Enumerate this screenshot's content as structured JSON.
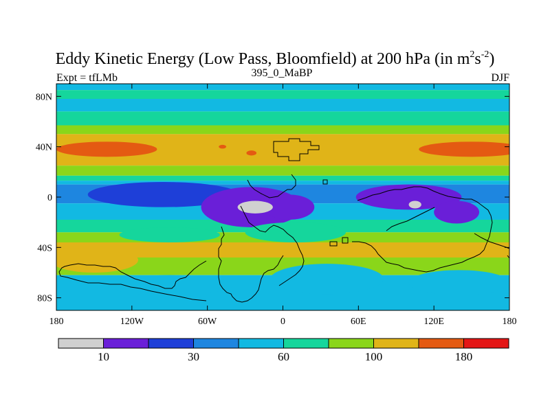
{
  "chart_data": {
    "type": "heatmap",
    "title": "Eddy Kinetic Energy (Low Pass, Bloomfield) at 200 hPa (in m",
    "title_unit_exp1": "2",
    "title_unit_mid": "s",
    "title_unit_exp2": "-2",
    "title_close": ")",
    "subtitle_left": "Expt = tfLMb",
    "subtitle_center": "395_0_MaBP",
    "subtitle_right": "DJF",
    "x_ticks": [
      {
        "value": -180,
        "label": "180"
      },
      {
        "value": -120,
        "label": "120W"
      },
      {
        "value": -60,
        "label": "60W"
      },
      {
        "value": 0,
        "label": "0"
      },
      {
        "value": 60,
        "label": "60E"
      },
      {
        "value": 120,
        "label": "120E"
      },
      {
        "value": 180,
        "label": "180"
      }
    ],
    "y_ticks": [
      {
        "value": 80,
        "label": "80N"
      },
      {
        "value": 40,
        "label": "40N"
      },
      {
        "value": 0,
        "label": "0"
      },
      {
        "value": -40,
        "label": "40S"
      },
      {
        "value": -80,
        "label": "80S"
      }
    ],
    "xlim": [
      -180,
      180
    ],
    "ylim": [
      -90,
      90
    ],
    "colorbar": {
      "colors": [
        "#d0d0d0",
        "#6a1fd8",
        "#1e3fd8",
        "#1e86e0",
        "#12b9e2",
        "#15d69c",
        "#8ad61a",
        "#e0b418",
        "#e45a12",
        "#e41616"
      ],
      "labels": [
        {
          "boundary": 1,
          "text": "10"
        },
        {
          "boundary": 3,
          "text": "30"
        },
        {
          "boundary": 5,
          "text": "60"
        },
        {
          "boundary": 7,
          "text": "100"
        },
        {
          "boundary": 9,
          "text": "180"
        }
      ]
    },
    "latitude_bands": [
      {
        "lat_top": 90,
        "lat_bottom": 85,
        "level": 4
      },
      {
        "lat_top": 85,
        "lat_bottom": 78,
        "level": 5
      },
      {
        "lat_top": 78,
        "lat_bottom": 68,
        "level": 4
      },
      {
        "lat_top": 68,
        "lat_bottom": 57,
        "level": 5
      },
      {
        "lat_top": 57,
        "lat_bottom": 50,
        "level": 6
      },
      {
        "lat_top": 50,
        "lat_bottom": 25,
        "level": 7
      },
      {
        "lat_top": 25,
        "lat_bottom": 17,
        "level": 6
      },
      {
        "lat_top": 17,
        "lat_bottom": 13,
        "level": 5
      },
      {
        "lat_top": 13,
        "lat_bottom": 10,
        "level": 4
      },
      {
        "lat_top": 10,
        "lat_bottom": -5,
        "level": 3
      },
      {
        "lat_top": -5,
        "lat_bottom": -18,
        "level": 4
      },
      {
        "lat_top": -18,
        "lat_bottom": -28,
        "level": 5
      },
      {
        "lat_top": -28,
        "lat_bottom": -36,
        "level": 6
      },
      {
        "lat_top": -36,
        "lat_bottom": -48,
        "level": 7
      },
      {
        "lat_top": -48,
        "lat_bottom": -62,
        "level": 6
      },
      {
        "lat_top": -62,
        "lat_bottom": -90,
        "level": 4
      }
    ],
    "regions": [
      {
        "shape": "ellipse",
        "lon": 150,
        "lat": 38,
        "rlon": 42,
        "rlat": 6,
        "level": 8
      },
      {
        "shape": "ellipse",
        "lon": -140,
        "lat": 38,
        "rlon": 40,
        "rlat": 6,
        "level": 8
      },
      {
        "shape": "ellipse",
        "lon": -48,
        "lat": 40,
        "rlon": 3,
        "rlat": 1.5,
        "level": 8
      },
      {
        "shape": "ellipse",
        "lon": -25,
        "lat": 35,
        "rlon": 4,
        "rlat": 2,
        "level": 8
      },
      {
        "shape": "ellipse",
        "lon": -95,
        "lat": 2,
        "rlon": 60,
        "rlat": 10,
        "level": 2
      },
      {
        "shape": "ellipse",
        "lon": -25,
        "lat": -8,
        "rlon": 40,
        "rlat": 16,
        "level": 1
      },
      {
        "shape": "ellipse",
        "lon": 5,
        "lat": -8,
        "rlon": 20,
        "rlat": 10,
        "level": 1
      },
      {
        "shape": "ellipse",
        "lon": 100,
        "lat": 0,
        "rlon": 42,
        "rlat": 10,
        "level": 1
      },
      {
        "shape": "ellipse",
        "lon": 138,
        "lat": -12,
        "rlon": 18,
        "rlat": 9,
        "level": 1
      },
      {
        "shape": "ellipse",
        "lon": -22,
        "lat": -8,
        "rlon": 14,
        "rlat": 5,
        "level": 0
      },
      {
        "shape": "ellipse",
        "lon": 105,
        "lat": -6,
        "rlon": 5,
        "rlat": 3,
        "level": 0
      },
      {
        "shape": "ellipse",
        "lon": 10,
        "lat": -28,
        "rlon": 40,
        "rlat": 8,
        "level": 5
      },
      {
        "shape": "ellipse",
        "lon": -90,
        "lat": -30,
        "rlon": 40,
        "rlat": 6,
        "level": 5
      },
      {
        "shape": "ellipse",
        "lon": -150,
        "lat": -50,
        "rlon": 35,
        "rlat": 10,
        "level": 7
      },
      {
        "shape": "ellipse",
        "lon": 35,
        "lat": -65,
        "rlon": 45,
        "rlat": 12,
        "level": 4
      },
      {
        "shape": "ellipse",
        "lon": -90,
        "lat": -70,
        "rlon": 50,
        "rlat": 8,
        "level": 4
      },
      {
        "shape": "ellipse",
        "lon": 140,
        "lat": -68,
        "rlon": 40,
        "rlat": 10,
        "level": 4
      }
    ]
  }
}
